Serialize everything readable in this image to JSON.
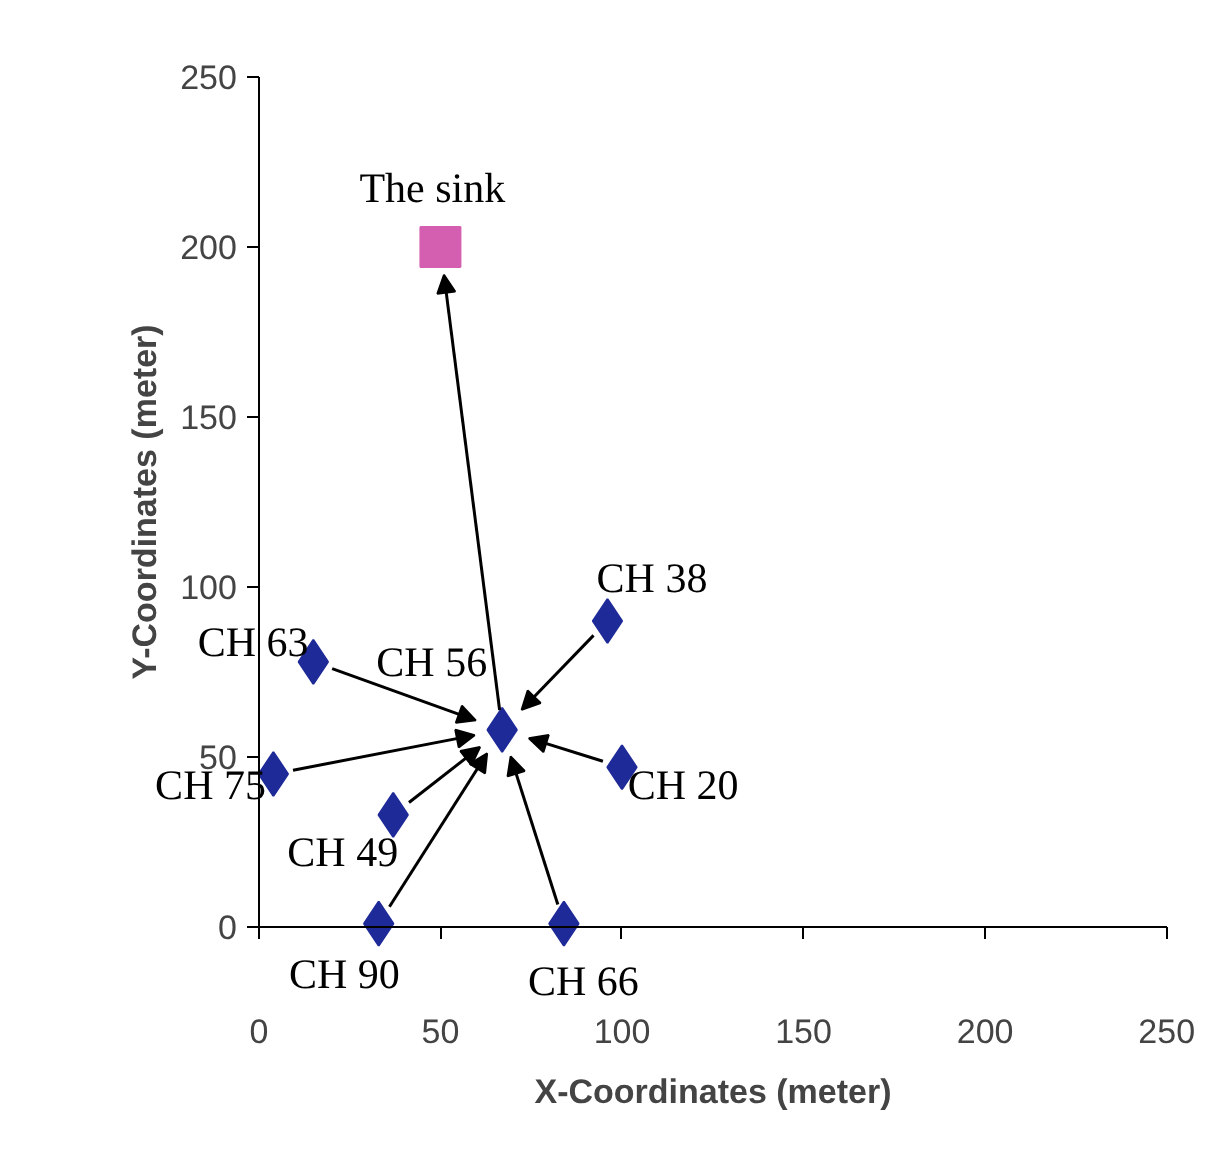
{
  "chart_data": {
    "type": "scatter",
    "xlabel": "X-Coordinates (meter)",
    "ylabel": "Y-Coordinates (meter)",
    "xlim": [
      0,
      250
    ],
    "ylim": [
      0,
      250
    ],
    "xticks": [
      0,
      50,
      100,
      150,
      200,
      250
    ],
    "yticks": [
      0,
      50,
      100,
      150,
      200,
      250
    ],
    "grid": false,
    "series": [
      {
        "color": "#1f2a99",
        "marker": "diamond",
        "x": [
          96,
          15,
          100,
          4,
          37,
          33,
          84
        ],
        "values": [
          90,
          78,
          47,
          45,
          33,
          1,
          1
        ]
      },
      {
        "color": "#1f2a99",
        "marker": "diamond",
        "x": [
          67
        ],
        "values": [
          58
        ]
      },
      {
        "color": "#d45fb0",
        "marker": "square",
        "x": [
          50
        ],
        "values": [
          200
        ]
      }
    ],
    "annotations": [
      {
        "text": "CH 38",
        "x": 96,
        "y": 90
      },
      {
        "text": "CH 63",
        "x": 15,
        "y": 78
      },
      {
        "text": "CH 20",
        "x": 100,
        "y": 47
      },
      {
        "text": "CH 75",
        "x": 4,
        "y": 45
      },
      {
        "text": "CH 49",
        "x": 37,
        "y": 33
      },
      {
        "text": "CH 90",
        "x": 33,
        "y": 1
      },
      {
        "text": "CH 66",
        "x": 84,
        "y": 1
      },
      {
        "text": "CH 56",
        "x": 67,
        "y": 58
      },
      {
        "text": "The sink",
        "x": 50,
        "y": 200
      }
    ]
  }
}
